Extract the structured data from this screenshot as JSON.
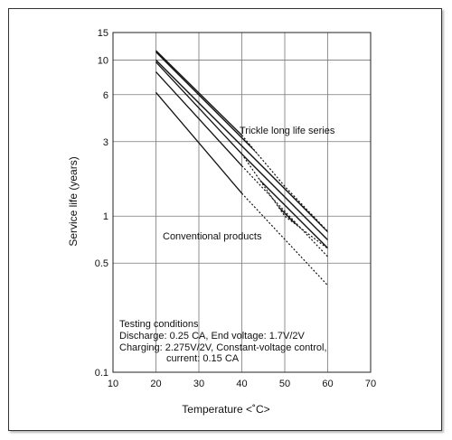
{
  "chart_data": {
    "type": "line",
    "xlabel": "Temperature <˚C>",
    "ylabel": "Service life (years)",
    "xlim": [
      10,
      70
    ],
    "ylim": [
      0.1,
      15
    ],
    "yscale": "log",
    "grid": true,
    "x_ticks": [
      "10",
      "20",
      "30",
      "40",
      "50",
      "60",
      "70"
    ],
    "x_tick_values": [
      10,
      20,
      30,
      40,
      50,
      60,
      70
    ],
    "y_ticks": [
      "15",
      "10",
      "6",
      "3",
      "1",
      "0.5",
      "0.1"
    ],
    "y_tick_values": [
      15,
      10,
      6,
      3,
      1,
      0.5,
      0.1
    ],
    "series": [
      {
        "id": "trickle_upper",
        "solid": [
          [
            20,
            11.5
          ],
          [
            40,
            3.3
          ]
        ],
        "dotted": [
          [
            40,
            3.3
          ],
          [
            50,
            1.55
          ],
          [
            60,
            0.8
          ]
        ]
      },
      {
        "id": "trickle_lower",
        "solid": [
          [
            20,
            9.7
          ],
          [
            40,
            2.5
          ]
        ],
        "dotted": [
          [
            40,
            2.5
          ],
          [
            50,
            1.0
          ],
          [
            60,
            0.62
          ]
        ]
      },
      {
        "id": "conventional_upper",
        "solid": [
          [
            20,
            8.4
          ],
          [
            40,
            2.1
          ]
        ],
        "dotted": [
          [
            40,
            2.1
          ],
          [
            60,
            0.55
          ]
        ]
      },
      {
        "id": "conventional_lower",
        "solid": [
          [
            20,
            6.2
          ],
          [
            40,
            1.4
          ]
        ],
        "dotted": [
          [
            40,
            1.4
          ],
          [
            60,
            0.36
          ]
        ]
      }
    ],
    "annotations": {
      "trickle": "Trickle long life series",
      "conventional": "Conventional products",
      "testing_title": "Testing conditions",
      "testing_line1": "Discharge: 0.25 CA, End voltage: 1.7V/2V",
      "testing_line2": "Charging: 2.275V/2V, Constant-voltage control,",
      "testing_line3": "current: 0.15 CA"
    }
  }
}
